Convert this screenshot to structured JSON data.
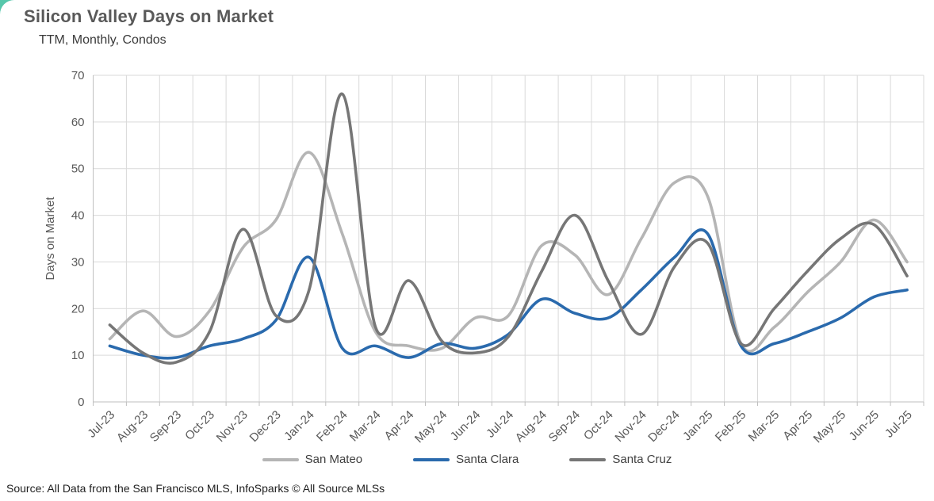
{
  "header": {
    "title": "Silicon Valley Days on Market",
    "subtitle": "TTM, Monthly, Condos"
  },
  "source": {
    "text": "Source: All Data from the San Francisco MLS, InfoSparks © All Source MLSs"
  },
  "palette": {
    "accent_corner": "#57c7ab",
    "title_text": "#595959",
    "axis_text": "#595959",
    "gridline": "#d9d9d9",
    "axis_line": "#bfbfbf",
    "legend_text": "#404040",
    "source_text": "#1f1f1f"
  },
  "chart_data": {
    "type": "line",
    "title": "Silicon Valley Days on Market",
    "subtitle": "TTM, Monthly, Condos",
    "xlabel": "",
    "ylabel": "Days on Market",
    "ylim": [
      0,
      70
    ],
    "ytick_step": 10,
    "grid": true,
    "smoothing": "spline",
    "legend_position": "bottom",
    "categories": [
      "Jul-23",
      "Aug-23",
      "Sep-23",
      "Oct-23",
      "Nov-23",
      "Dec-23",
      "Jan-24",
      "Feb-24",
      "Mar-24",
      "Apr-24",
      "May-24",
      "Jun-24",
      "Jul-24",
      "Aug-24",
      "Sep-24",
      "Oct-24",
      "Nov-24",
      "Dec-24",
      "Jan-25",
      "Feb-25",
      "Mar-25",
      "Apr-25",
      "May-25",
      "Jun-25",
      "Jul-25"
    ],
    "series": [
      {
        "name": "San Mateo",
        "color": "#b5b5b5",
        "values": [
          13.5,
          19.5,
          14,
          19.5,
          33,
          39,
          53.5,
          36,
          15,
          12,
          11.5,
          18,
          18.5,
          33.5,
          31.5,
          23,
          35,
          47,
          44,
          12.5,
          16,
          23.5,
          30,
          39,
          30
        ]
      },
      {
        "name": "Santa Clara",
        "color": "#2a6aad",
        "values": [
          12,
          10,
          9.5,
          12,
          13.5,
          17.5,
          31,
          11.5,
          12,
          9.5,
          12.5,
          11.5,
          14.5,
          22,
          19,
          18,
          24,
          31,
          36,
          12,
          12.5,
          15,
          18,
          22.5,
          24
        ]
      },
      {
        "name": "Santa Cruz",
        "color": "#767676",
        "values": [
          16.5,
          10.5,
          8.5,
          15,
          37,
          18.5,
          24,
          66,
          16,
          26,
          13,
          10.5,
          14,
          28,
          40,
          26,
          14.5,
          29,
          34,
          12.5,
          20,
          28,
          35,
          38,
          27
        ]
      }
    ]
  }
}
